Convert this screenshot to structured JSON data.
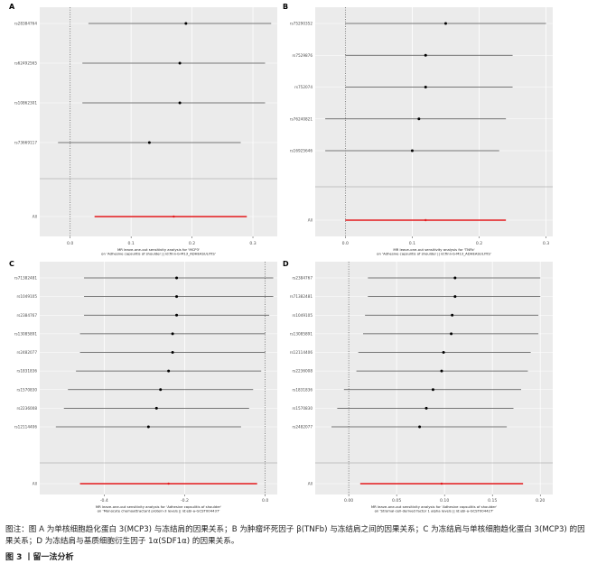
{
  "chart_data": [
    {
      "panel": "A",
      "type": "forest",
      "snps": [
        "rs28384764",
        "rs62492565",
        "rs10862301",
        "rs73669117"
      ],
      "estimates": [
        0.19,
        0.18,
        0.18,
        0.13
      ],
      "ci_low": [
        0.03,
        0.02,
        0.02,
        -0.02
      ],
      "ci_high": [
        0.33,
        0.32,
        0.32,
        0.28
      ],
      "overall_label": "All",
      "overall": {
        "estimate": 0.17,
        "ci_low": 0.04,
        "ci_high": 0.29
      },
      "xlim": [
        -0.05,
        0.34
      ],
      "xticks": [
        0.0,
        0.1,
        0.2,
        0.3
      ],
      "xtick_labels": [
        "0.0",
        "0.1",
        "0.2",
        "0.3"
      ],
      "xlabel": "MR leave-one-out sensitivity analysis for 'MCP3' on 'Adhesive capsulitis of shoulder || id:finn-b-M13_ADHEASULITIS'"
    },
    {
      "panel": "B",
      "type": "forest",
      "snps": [
        "rs75290352",
        "rs7529876",
        "rs752074",
        "rs76240821",
        "rs16925646"
      ],
      "estimates": [
        0.15,
        0.12,
        0.12,
        0.11,
        0.1
      ],
      "ci_low": [
        0.0,
        0.0,
        0.0,
        -0.03,
        -0.03
      ],
      "ci_high": [
        0.3,
        0.25,
        0.25,
        0.24,
        0.23
      ],
      "overall_label": "All",
      "overall": {
        "estimate": 0.12,
        "ci_low": 0.0,
        "ci_high": 0.24
      },
      "xlim": [
        -0.045,
        0.31
      ],
      "xticks": [
        0.0,
        0.1,
        0.2,
        0.3
      ],
      "xtick_labels": [
        "0.0",
        "0.1",
        "0.2",
        "0.3"
      ],
      "xlabel": "MR leave-one-out sensitivity analysis for 'TNFb' on 'Adhesive capsulitis of shoulder || id:finn-b-M13_ADHEASULITIS'"
    },
    {
      "panel": "C",
      "type": "forest",
      "snps": [
        "rs71382481",
        "rs1049105",
        "rs2384767",
        "rs13085891",
        "rs2482077",
        "rs1831836",
        "rs1570830",
        "rs2236008",
        "rs12114406"
      ],
      "estimates": [
        -0.22,
        -0.22,
        -0.22,
        -0.23,
        -0.23,
        -0.24,
        -0.26,
        -0.27,
        -0.29
      ],
      "ci_low": [
        -0.45,
        -0.45,
        -0.45,
        -0.46,
        -0.46,
        -0.47,
        -0.49,
        -0.5,
        -0.52
      ],
      "ci_high": [
        0.02,
        0.02,
        0.01,
        0.0,
        0.0,
        -0.01,
        -0.03,
        -0.04,
        -0.06
      ],
      "overall_label": "All",
      "overall": {
        "estimate": -0.24,
        "ci_low": -0.46,
        "ci_high": -0.02
      },
      "xlim": [
        -0.56,
        0.03
      ],
      "xticks": [
        -0.4,
        -0.2,
        0.0
      ],
      "xtick_labels": [
        "-0.4",
        "-0.2",
        "0.0"
      ],
      "xlabel": "MR leave-one-out sensitivity analysis for 'Adhesive capsulitis of shoulder' on 'Monocyte chemoattractant protein-3 levels || id:ebi-a-GCST004437'"
    },
    {
      "panel": "D",
      "type": "forest",
      "snps": [
        "rs2384767",
        "rs71382481",
        "rs1049105",
        "rs13085891",
        "rs12114406",
        "rs2236008",
        "rs1831836",
        "rs1570830",
        "rs2482077"
      ],
      "estimates": [
        0.111,
        0.111,
        0.108,
        0.107,
        0.099,
        0.097,
        0.088,
        0.081,
        0.074
      ],
      "ci_low": [
        0.02,
        0.02,
        0.017,
        0.015,
        0.01,
        0.008,
        -0.005,
        -0.012,
        -0.018
      ],
      "ci_high": [
        0.2,
        0.2,
        0.198,
        0.198,
        0.19,
        0.187,
        0.18,
        0.172,
        0.165
      ],
      "overall_label": "All",
      "overall": {
        "estimate": 0.097,
        "ci_low": 0.012,
        "ci_high": 0.182
      },
      "xlim": [
        -0.035,
        0.213
      ],
      "xticks": [
        0.0,
        0.05,
        0.1,
        0.15,
        0.2
      ],
      "xtick_labels": [
        "0.00",
        "0.05",
        "0.10",
        "0.15",
        "0.20"
      ],
      "xlabel": "MR leave-one-out sensitivity analysis for 'Adhesive capsulitis of shoulder' on 'Stromal-cell-derived factor 1 alpha levels || id:ebi-a-GCST004427'"
    }
  ],
  "caption": "图注：图 A 为单核细胞趋化蛋白 3(MCP3) 与冻结肩的因果关系；B 为肿瘤坏死因子 β(TNFb) 与冻结肩之间的因果关系；C 为冻结肩与单核细胞趋化蛋白 3(MCP3) 的因果关系；D 为冻结肩与基质细胞衍生因子 1α(SDF1α) 的因果关系。",
  "figure_label": "图 3 丨留一法分析",
  "colors": {
    "panel_bg": "#ebebeb",
    "grid": "#ffffff",
    "point": "#000000",
    "ci": "#4d4d4d",
    "overall": "#e41a1c",
    "zero_line": "#555555"
  }
}
